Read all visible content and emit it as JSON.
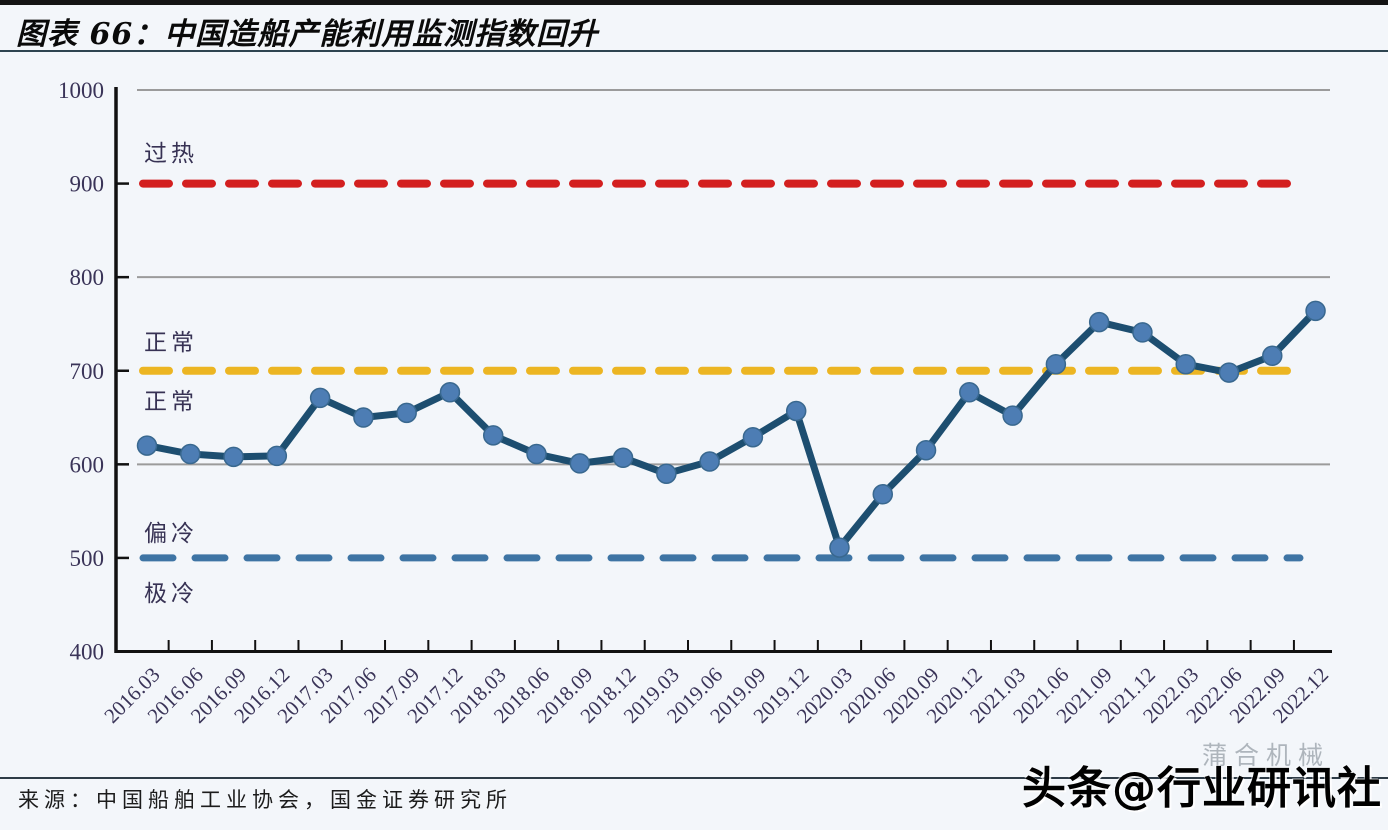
{
  "header": {
    "title": "图表 66：中国造船产能利用监测指数回升"
  },
  "footer": {
    "source": "来源：中国船舶工业协会，国金证券研究所"
  },
  "watermarks": {
    "faint": "蒲合机械",
    "main": "头条@行业研讯社"
  },
  "chart_data": {
    "type": "line",
    "title": "中国造船产能利用监测指数",
    "categories": [
      "2016.03",
      "2016.06",
      "2016.09",
      "2016.12",
      "2017.03",
      "2017.06",
      "2017.09",
      "2017.12",
      "2018.03",
      "2018.06",
      "2018.09",
      "2018.12",
      "2019.03",
      "2019.06",
      "2019.09",
      "2019.12",
      "2020.03",
      "2020.06",
      "2020.09",
      "2020.12",
      "2021.03",
      "2021.06",
      "2021.09",
      "2021.12",
      "2022.03",
      "2022.06",
      "2022.09",
      "2022.12"
    ],
    "series": [
      {
        "name": "中国造船产能利用监测指数",
        "values": [
          620,
          611,
          608,
          609,
          671,
          650,
          655,
          677,
          631,
          611,
          601,
          607,
          590,
          603,
          629,
          657,
          511,
          568,
          615,
          677,
          652,
          707,
          752,
          741,
          707,
          698,
          716,
          764
        ]
      }
    ],
    "ylim": [
      400,
      1000
    ],
    "yticks": [
      1000,
      900,
      800,
      700,
      600,
      500,
      400
    ],
    "solid_gridlines": [
      1000,
      800,
      600
    ],
    "reference_lines": [
      {
        "value": 900,
        "color": "#d31f1f",
        "style": "dashed"
      },
      {
        "value": 700,
        "color": "#ecb522",
        "style": "dashed"
      },
      {
        "value": 500,
        "color": "#3e74a4",
        "style": "dashed"
      }
    ],
    "zones": [
      {
        "label": "过热",
        "value": 938
      },
      {
        "label": "正常",
        "value": 736
      },
      {
        "label": "正常",
        "value": 673
      },
      {
        "label": "偏冷",
        "value": 532
      },
      {
        "label": "极冷",
        "value": 468
      }
    ],
    "legend_position": "none",
    "line_color": "#1d4e70",
    "marker_color": "#4d7db4",
    "marker_stroke": "#39688f",
    "axis_color": "#111111",
    "grid_color": "#9b9b9b",
    "tick_label_color": "#3a3458"
  }
}
